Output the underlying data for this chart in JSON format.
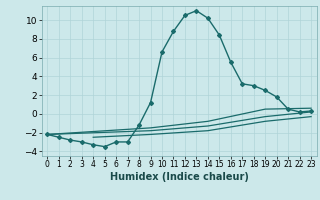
{
  "background_color": "#cce8ea",
  "grid_color": "#b0d4d8",
  "line_color": "#1a6b6b",
  "xlabel": "Humidex (Indice chaleur)",
  "xlabel_fontsize": 7,
  "ytick_fontsize": 6.5,
  "xtick_fontsize": 5.5,
  "ylim": [
    -4.5,
    11.5
  ],
  "xlim": [
    -0.5,
    23.5
  ],
  "curve_main": {
    "x": [
      0,
      1,
      2,
      3,
      4,
      5,
      6,
      7,
      8,
      9,
      10,
      11,
      12,
      13,
      14,
      15,
      16,
      17,
      18,
      19,
      20,
      21,
      22,
      23
    ],
    "y": [
      -2.2,
      -2.5,
      -2.8,
      -3.0,
      -3.3,
      -3.5,
      -3.0,
      -3.0,
      -1.2,
      1.2,
      6.6,
      8.8,
      10.5,
      11.0,
      10.2,
      8.4,
      5.5,
      3.2,
      3.0,
      2.5,
      1.8,
      0.5,
      0.2,
      0.3
    ]
  },
  "curve_flat1": {
    "x": [
      0,
      9,
      14,
      19,
      23
    ],
    "y": [
      -2.2,
      -1.5,
      -0.8,
      0.5,
      0.6
    ]
  },
  "curve_flat2": {
    "x": [
      0,
      9,
      14,
      19,
      23
    ],
    "y": [
      -2.2,
      -1.8,
      -1.3,
      -0.3,
      0.2
    ]
  },
  "curve_flat3": {
    "x": [
      4,
      9,
      14,
      19,
      23
    ],
    "y": [
      -2.5,
      -2.2,
      -1.8,
      -0.8,
      -0.3
    ]
  },
  "xticks": [
    0,
    1,
    2,
    3,
    4,
    5,
    6,
    7,
    8,
    9,
    10,
    11,
    12,
    13,
    14,
    15,
    16,
    17,
    18,
    19,
    20,
    21,
    22,
    23
  ],
  "yticks": [
    -4,
    -2,
    0,
    2,
    4,
    6,
    8,
    10
  ]
}
